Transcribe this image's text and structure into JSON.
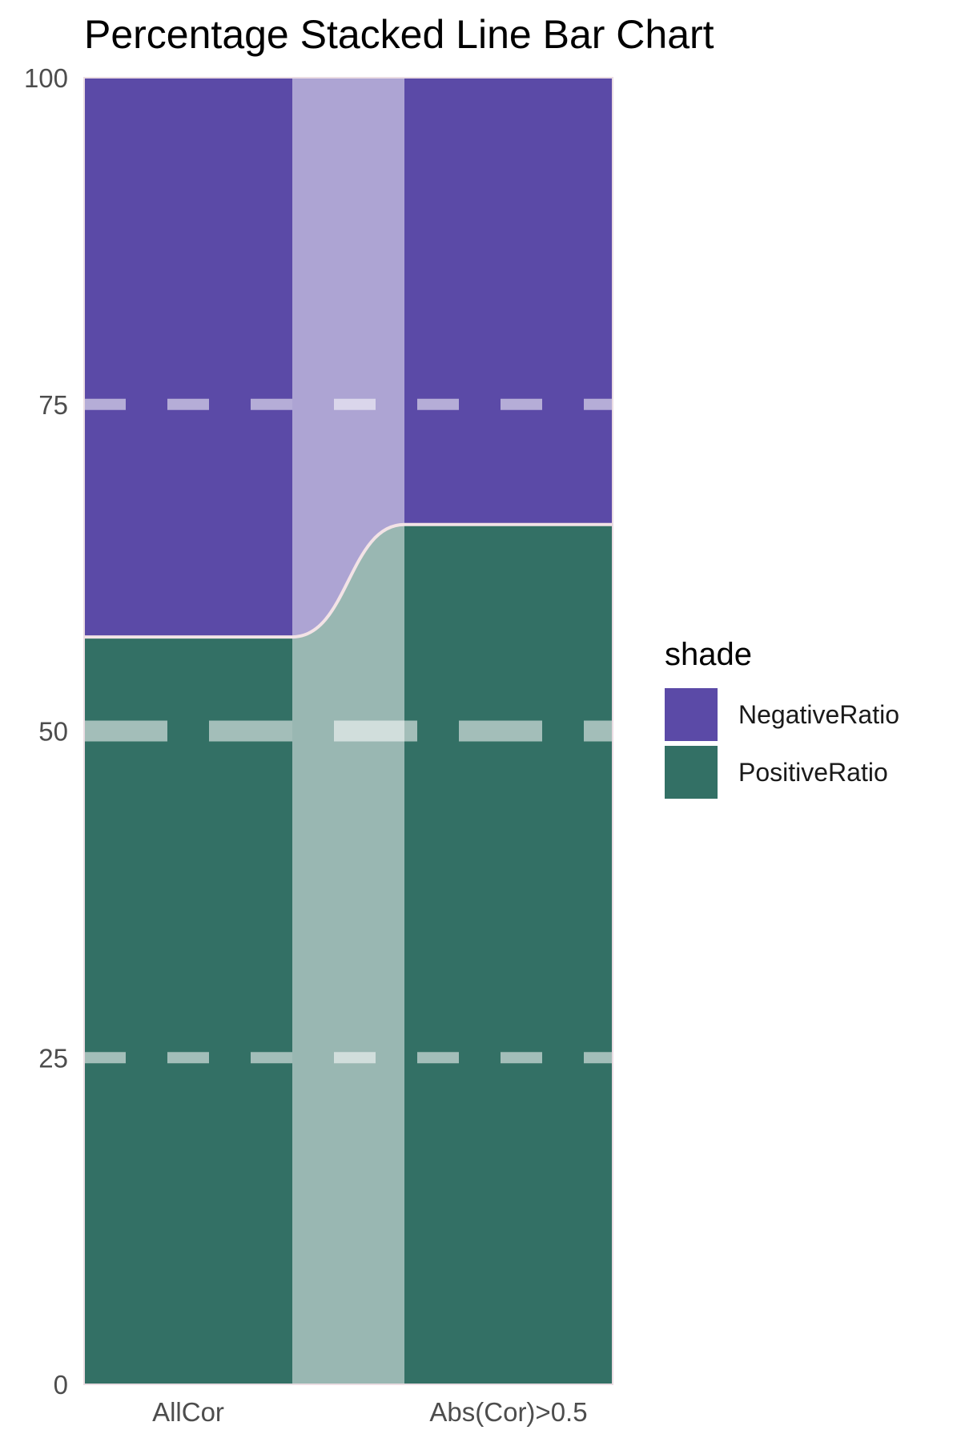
{
  "chart_data": {
    "type": "bar",
    "title": "Percentage Stacked Line Bar Chart",
    "categories": [
      "AllCor",
      "Abs(Cor)>0.5"
    ],
    "series": [
      {
        "name": "PositiveRatio",
        "values": [
          57.2,
          65.8
        ],
        "color": "#337065"
      },
      {
        "name": "NegativeRatio",
        "values": [
          42.8,
          34.2
        ],
        "color": "#5b4aa7"
      }
    ],
    "stacked": "percent",
    "ylim": [
      0,
      100
    ],
    "yticks": [
      "0",
      "25",
      "50",
      "75",
      "100"
    ],
    "xlabel": "",
    "ylabel": "",
    "legend": {
      "title": "shade",
      "position": "right",
      "items": [
        "NegativeRatio",
        "PositiveRatio"
      ]
    },
    "grid": "dashed horizontal lines overlaid",
    "connector": "smooth line joining stack boundaries between bars"
  }
}
